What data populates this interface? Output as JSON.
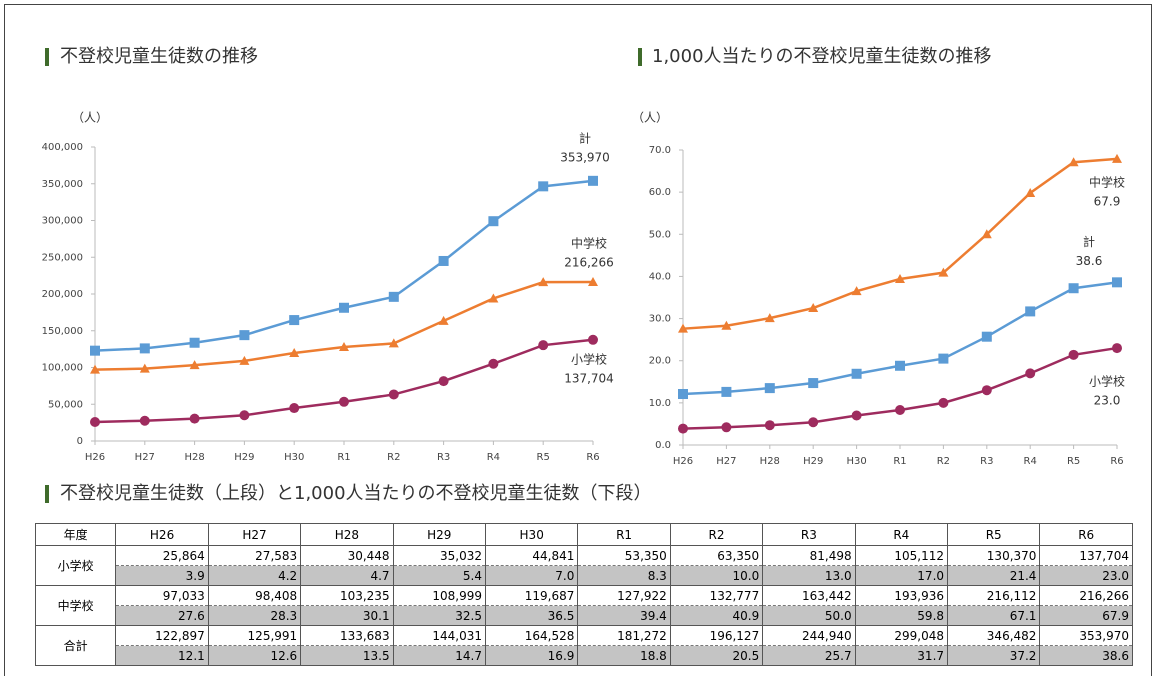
{
  "chart_data": [
    {
      "type": "line",
      "title": "不登校児童生徒数の推移",
      "y_label": "（人）",
      "categories": [
        "H26",
        "H27",
        "H28",
        "H29",
        "H30",
        "R1",
        "R2",
        "R3",
        "R4",
        "R5",
        "R6"
      ],
      "ylim": [
        0,
        400000
      ],
      "yticks": [
        0,
        {
          "value": 50000,
          "label": "50,000"
        },
        {
          "value": 100000,
          "label": "100,000"
        },
        {
          "value": 150000,
          "label": "150,000"
        },
        {
          "value": 200000,
          "label": "200,000"
        },
        {
          "value": 250000,
          "label": "250,000"
        },
        {
          "value": 300000,
          "label": "300,000"
        },
        {
          "value": 350000,
          "label": "350,000"
        },
        {
          "value": 400000,
          "label": "400,000"
        }
      ],
      "grid": false,
      "series": [
        {
          "name": "計",
          "color": "#5b9bd5",
          "marker": "square",
          "values": [
            122897,
            125991,
            133683,
            144031,
            164528,
            181272,
            196127,
            244940,
            299048,
            346482,
            353970
          ],
          "value_labels": [
            null,
            null,
            null,
            null,
            null,
            null,
            null,
            null,
            null,
            null,
            "353,970"
          ]
        },
        {
          "name": "中学校",
          "color": "#ed7d31",
          "marker": "triangle",
          "values": [
            97033,
            98408,
            103235,
            108999,
            119687,
            127922,
            132777,
            163442,
            193936,
            216112,
            216266
          ],
          "value_labels": [
            null,
            null,
            null,
            null,
            null,
            null,
            null,
            null,
            null,
            null,
            "216,266"
          ]
        },
        {
          "name": "小学校",
          "color": "#9e2b5e",
          "marker": "circle",
          "values": [
            25864,
            27583,
            30448,
            35032,
            44841,
            53350,
            63350,
            81498,
            105112,
            130370,
            137704
          ],
          "value_labels": [
            null,
            null,
            null,
            null,
            null,
            null,
            null,
            null,
            null,
            null,
            "137,704"
          ]
        }
      ]
    },
    {
      "type": "line",
      "title": "1,000人当たりの不登校児童生徒数の推移",
      "y_label": "（人）",
      "categories": [
        "H26",
        "H27",
        "H28",
        "H29",
        "H30",
        "R1",
        "R2",
        "R3",
        "R4",
        "R5",
        "R6"
      ],
      "ylim": [
        0,
        70
      ],
      "yticks": [
        {
          "value": 0,
          "label": "0.0"
        },
        {
          "value": 10,
          "label": "10.0"
        },
        {
          "value": 20,
          "label": "20.0"
        },
        {
          "value": 30,
          "label": "30.0"
        },
        {
          "value": 40,
          "label": "40.0"
        },
        {
          "value": 50,
          "label": "50.0"
        },
        {
          "value": 60,
          "label": "60.0"
        },
        {
          "value": 70,
          "label": "70.0"
        }
      ],
      "grid": false,
      "series": [
        {
          "name": "中学校",
          "color": "#ed7d31",
          "marker": "triangle",
          "values": [
            27.6,
            28.3,
            30.1,
            32.5,
            36.5,
            39.4,
            40.9,
            50.0,
            59.8,
            67.1,
            67.9
          ],
          "value_labels": [
            null,
            null,
            null,
            null,
            null,
            null,
            null,
            null,
            null,
            null,
            "67.9"
          ]
        },
        {
          "name": "計",
          "color": "#5b9bd5",
          "marker": "square",
          "values": [
            12.1,
            12.6,
            13.5,
            14.7,
            16.9,
            18.8,
            20.5,
            25.7,
            31.7,
            37.2,
            38.6
          ],
          "value_labels": [
            null,
            null,
            null,
            null,
            null,
            null,
            null,
            null,
            null,
            null,
            "38.6"
          ]
        },
        {
          "name": "小学校",
          "color": "#9e2b5e",
          "marker": "circle",
          "values": [
            3.9,
            4.2,
            4.7,
            5.4,
            7.0,
            8.3,
            10.0,
            13.0,
            17.0,
            21.4,
            23.0
          ],
          "value_labels": [
            null,
            null,
            null,
            null,
            null,
            null,
            null,
            null,
            null,
            null,
            "23.0"
          ]
        }
      ]
    }
  ],
  "table": {
    "title": "不登校児童生徒数（上段）と1,000人当たりの不登校児童生徒数（下段）",
    "header": [
      "年度",
      "H26",
      "H27",
      "H28",
      "H29",
      "H30",
      "R1",
      "R2",
      "R3",
      "R4",
      "R5",
      "R6"
    ],
    "rows": [
      {
        "label": "小学校",
        "counts": [
          "25,864",
          "27,583",
          "30,448",
          "35,032",
          "44,841",
          "53,350",
          "63,350",
          "81,498",
          "105,112",
          "130,370",
          "137,704"
        ],
        "rates": [
          "3.9",
          "4.2",
          "4.7",
          "5.4",
          "7.0",
          "8.3",
          "10.0",
          "13.0",
          "17.0",
          "21.4",
          "23.0"
        ]
      },
      {
        "label": "中学校",
        "counts": [
          "97,033",
          "98,408",
          "103,235",
          "108,999",
          "119,687",
          "127,922",
          "132,777",
          "163,442",
          "193,936",
          "216,112",
          "216,266"
        ],
        "rates": [
          "27.6",
          "28.3",
          "30.1",
          "32.5",
          "36.5",
          "39.4",
          "40.9",
          "50.0",
          "59.8",
          "67.1",
          "67.9"
        ]
      },
      {
        "label": "合計",
        "counts": [
          "122,897",
          "125,991",
          "133,683",
          "144,031",
          "164,528",
          "181,272",
          "196,127",
          "244,940",
          "299,048",
          "346,482",
          "353,970"
        ],
        "rates": [
          "12.1",
          "12.6",
          "13.5",
          "14.7",
          "16.9",
          "18.8",
          "20.5",
          "25.7",
          "31.7",
          "37.2",
          "38.6"
        ]
      }
    ]
  }
}
